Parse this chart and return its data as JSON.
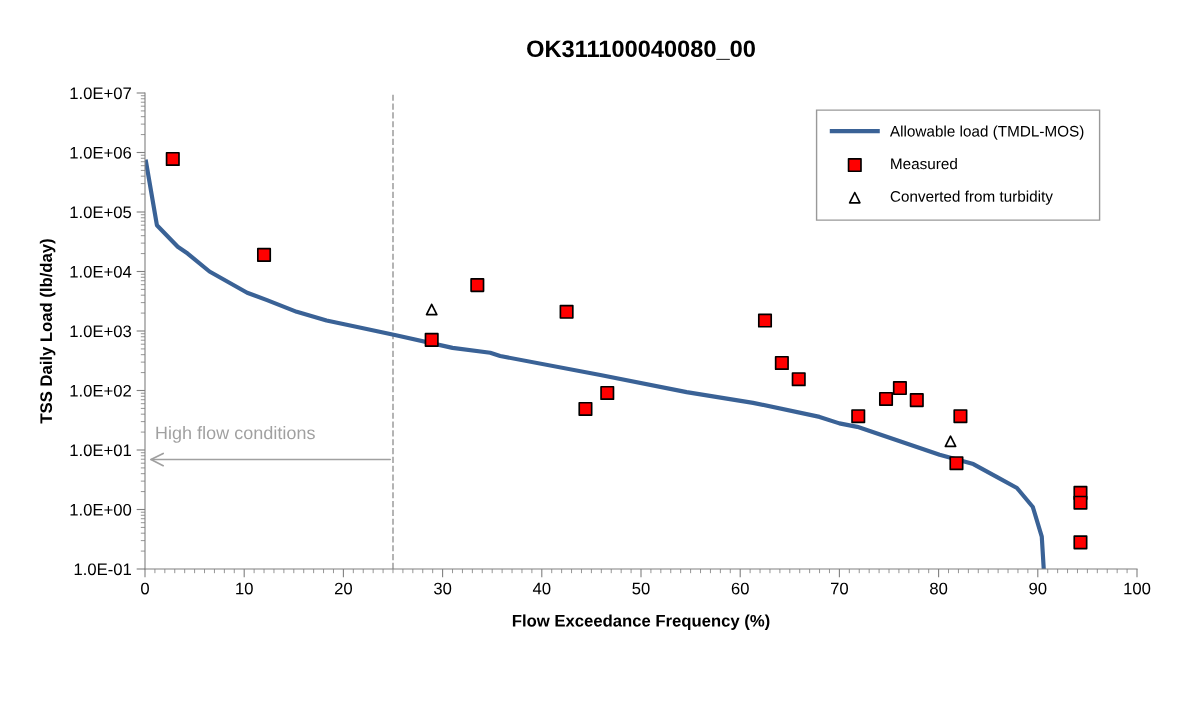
{
  "chart_data": {
    "type": "scatter",
    "title": "OK311100040080_00",
    "xlabel": "Flow Exceedance Frequency (%)",
    "ylabel": "TSS Daily Load (lb/day)",
    "log": "y",
    "xlim": [
      0,
      100
    ],
    "xticks": [
      0,
      10,
      20,
      30,
      40,
      50,
      60,
      70,
      80,
      90,
      100
    ],
    "ylim": [
      0.1,
      10000000
    ],
    "yticks": [
      {
        "value": 0.1,
        "label": "1.0E-01"
      },
      {
        "value": 1,
        "label": "1.0E+00"
      },
      {
        "value": 10,
        "label": "1.0E+01"
      },
      {
        "value": 100,
        "label": "1.0E+02"
      },
      {
        "value": 1000,
        "label": "1.0E+03"
      },
      {
        "value": 10000,
        "label": "1.0E+04"
      },
      {
        "value": 100000,
        "label": "1.0E+05"
      },
      {
        "value": 1000000,
        "label": "1.0E+06"
      },
      {
        "value": 10000000,
        "label": "1.0E+07"
      }
    ],
    "grid": false,
    "legend": "top right",
    "ref_lines": [
      {
        "axis": "x",
        "value": 25,
        "color": "#a6a6a6",
        "line_style": "dashed",
        "label": "High flow conditions"
      }
    ],
    "series": [
      {
        "name": "Allowable load (TMDL-MOS)",
        "type": "line",
        "color": "#3a6296",
        "marker": "none",
        "line_style": "solid",
        "x": [
          0.1,
          1.2,
          3.3,
          4.3,
          6.5,
          10.3,
          12.3,
          15.3,
          18.3,
          21.4,
          25.3,
          31,
          34.8,
          35.8,
          45.9,
          54.6,
          61.3,
          68,
          70,
          71.8,
          80.1,
          83.5,
          85.9,
          87.9,
          89.5,
          90.4,
          90.6
        ],
        "values": [
          700000,
          60000,
          26000,
          20000,
          10000,
          4400,
          3300,
          2100,
          1500,
          1170,
          850,
          520,
          430,
          380,
          182,
          94,
          62,
          36,
          28,
          24.5,
          8.3,
          5.8,
          3.5,
          2.3,
          1.1,
          0.35,
          0.1
        ]
      },
      {
        "name": "Measured",
        "color": "#ff0000",
        "marker": "square",
        "x": [
          2.8,
          12.0,
          28.9,
          33.5,
          42.5,
          44.4,
          46.6,
          62.5,
          64.2,
          65.9,
          71.9,
          74.7,
          76.1,
          77.8,
          82.2,
          81.8,
          94.3,
          94.3,
          94.3
        ],
        "values": [
          780000,
          19000,
          710,
          5900,
          2100,
          49,
          91,
          1500,
          290,
          155,
          37,
          72,
          110,
          69,
          37,
          6.0,
          1.9,
          1.3,
          0.28
        ]
      },
      {
        "name": "Converted from turbidity",
        "color": "#ffffff",
        "marker": "triangle",
        "x": [
          28.9,
          81.2
        ],
        "values": [
          2300,
          14
        ]
      }
    ]
  }
}
